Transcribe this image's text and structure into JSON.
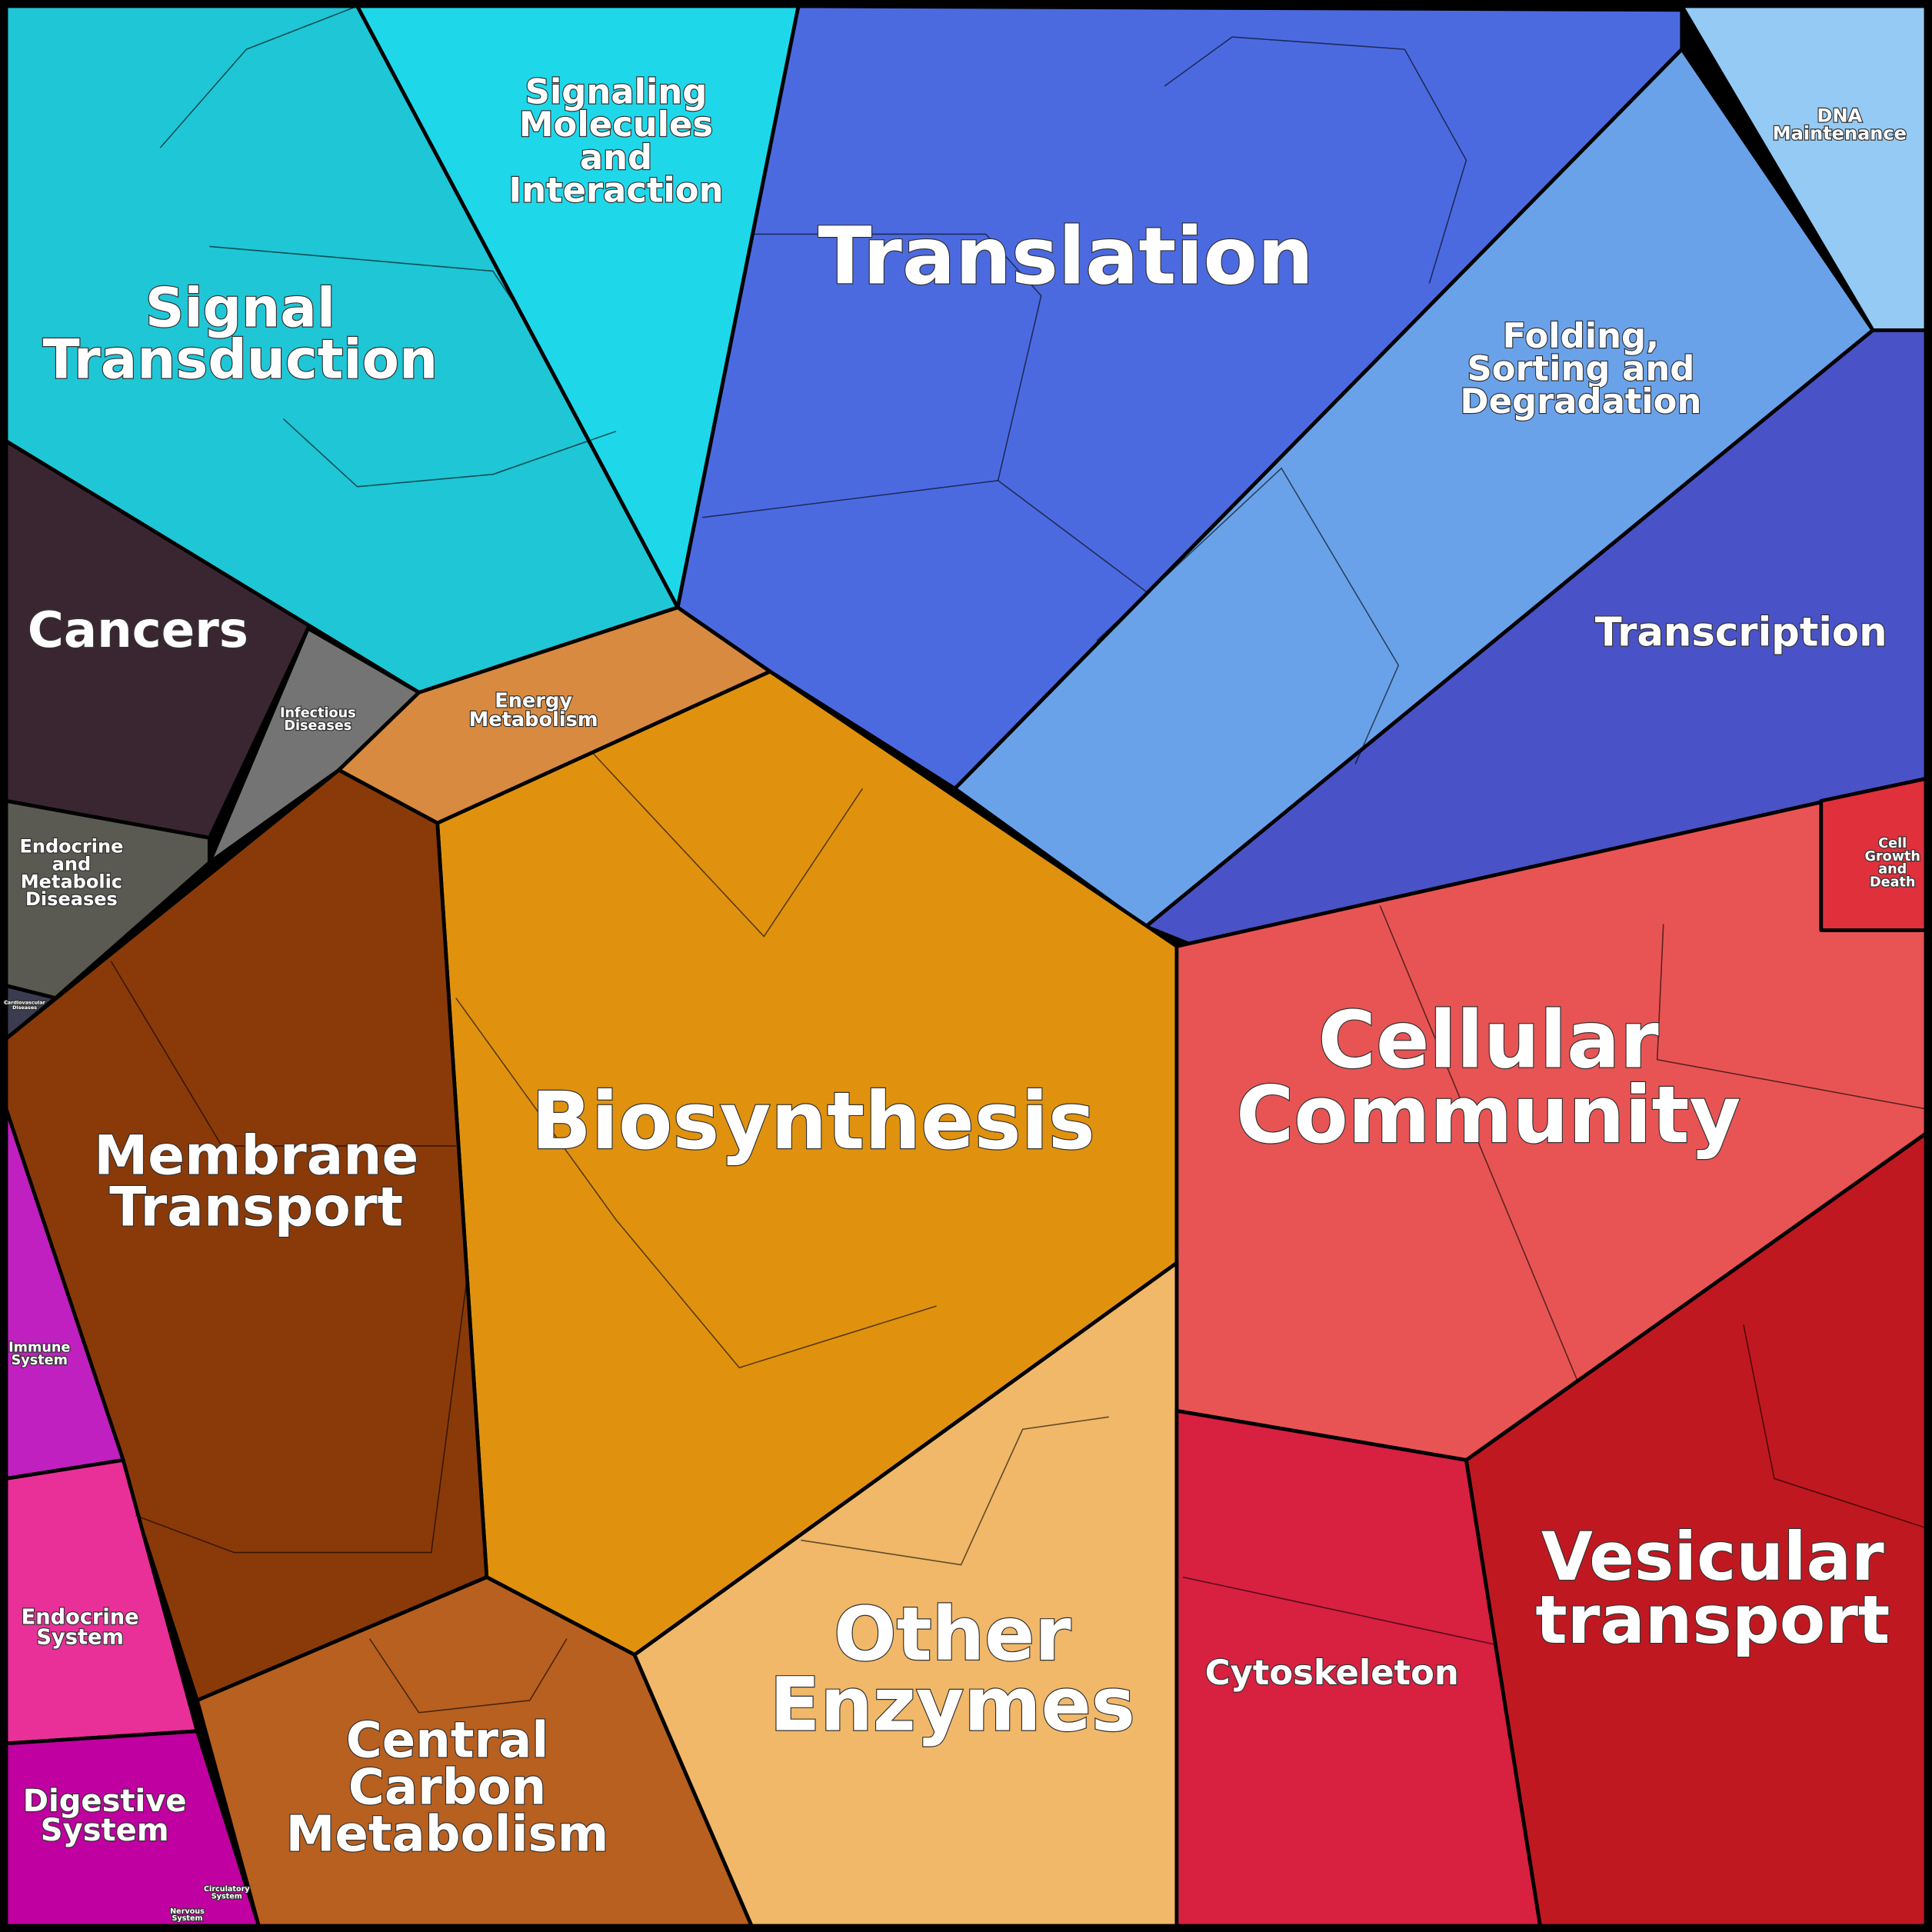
{
  "regions": [
    {
      "label": "Signal\nTransduction"
    },
    {
      "label": "Signaling\nMolecules\nand\nInteraction"
    },
    {
      "label": "Translation"
    },
    {
      "label": "DNA\nMaintenance"
    },
    {
      "label": "Folding,\nSorting and\nDegradation"
    },
    {
      "label": "Transcription"
    },
    {
      "label": "Cancers"
    },
    {
      "label": "Infectious\nDiseases"
    },
    {
      "label": "Energy\nMetabolism"
    },
    {
      "label": "Endocrine\nand\nMetabolic\nDiseases"
    },
    {
      "label": "Cardiovascular\nDiseases"
    },
    {
      "label": "Biosynthesis"
    },
    {
      "label": "Cellular\nCommunity"
    },
    {
      "label": "Cell\nGrowth\nand\nDeath"
    },
    {
      "label": "Membrane\nTransport"
    },
    {
      "label": "Immune\nSystem"
    },
    {
      "label": "Endocrine\nSystem"
    },
    {
      "label": "Digestive\nSystem"
    },
    {
      "label": "Circulatory\nSystem"
    },
    {
      "label": "Nervous\nSystem"
    },
    {
      "label": "Central\nCarbon\nMetabolism"
    },
    {
      "label": "Other\nEnzymes"
    },
    {
      "label": "Cytoskeleton"
    },
    {
      "label": "Vesicular\ntransport"
    }
  ]
}
